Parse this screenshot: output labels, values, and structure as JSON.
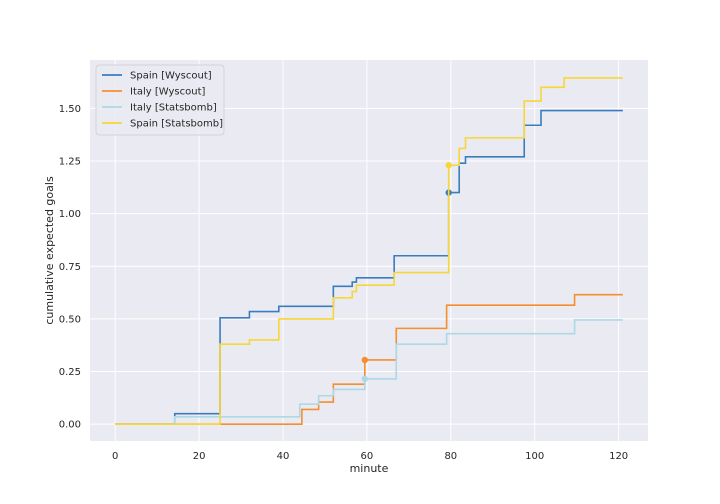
{
  "chart_data": {
    "type": "line",
    "title": "",
    "xlabel": "minute",
    "ylabel": "cumulative expected goals",
    "xlim": [
      -6,
      127
    ],
    "ylim": [
      -0.08,
      1.73
    ],
    "xticks": [
      0,
      20,
      40,
      60,
      80,
      100,
      120
    ],
    "xtick_labels": [
      "0",
      "20",
      "40",
      "60",
      "80",
      "100",
      "120"
    ],
    "yticks": [
      0.0,
      0.25,
      0.5,
      0.75,
      1.0,
      1.25,
      1.5
    ],
    "ytick_labels": [
      "0.00",
      "0.25",
      "0.50",
      "0.75",
      "1.00",
      "1.25",
      "1.50"
    ],
    "grid": true,
    "background": "#EAEAF2",
    "legend_position": "top-left",
    "series": [
      {
        "name": "Spain [Wyscout]",
        "color": "#3A7DBE",
        "step": "post",
        "x": [
          0,
          14.2,
          25,
          32,
          39,
          52,
          56.5,
          57.5,
          66.5,
          79.5,
          82,
          83.5,
          97.5,
          101.5,
          121
        ],
        "y": [
          0,
          0.05,
          0.505,
          0.535,
          0.56,
          0.655,
          0.675,
          0.695,
          0.8,
          1.1,
          1.24,
          1.27,
          1.42,
          1.49,
          1.49
        ],
        "markers": [
          {
            "x": 79.5,
            "y": 1.1
          }
        ]
      },
      {
        "name": "Italy [Wyscout]",
        "color": "#F58E2F",
        "step": "post",
        "x": [
          0,
          44.5,
          48.5,
          52,
          59.5,
          67,
          79,
          109.5,
          121
        ],
        "y": [
          0,
          0.07,
          0.105,
          0.19,
          0.305,
          0.455,
          0.565,
          0.615,
          0.615
        ],
        "markers": [
          {
            "x": 59.5,
            "y": 0.305
          }
        ]
      },
      {
        "name": "Italy [Statsbomb]",
        "color": "#ADD8E6",
        "step": "post",
        "x": [
          0,
          14.2,
          44,
          48.5,
          52,
          59.5,
          67,
          79,
          109.5,
          121
        ],
        "y": [
          0,
          0.035,
          0.095,
          0.135,
          0.165,
          0.215,
          0.38,
          0.43,
          0.495,
          0.495
        ],
        "markers": [
          {
            "x": 59.5,
            "y": 0.215
          }
        ]
      },
      {
        "name": "Spain [Statsbomb]",
        "color": "#F8D637",
        "step": "post",
        "x": [
          0,
          25,
          32,
          39,
          52,
          56.5,
          57.5,
          66.5,
          79.5,
          82,
          83.5,
          97.5,
          101.5,
          107,
          121
        ],
        "y": [
          0,
          0.38,
          0.4,
          0.5,
          0.6,
          0.63,
          0.66,
          0.72,
          1.23,
          1.31,
          1.36,
          1.535,
          1.6,
          1.645,
          1.645
        ],
        "markers": [
          {
            "x": 79.5,
            "y": 1.23
          }
        ]
      }
    ]
  }
}
